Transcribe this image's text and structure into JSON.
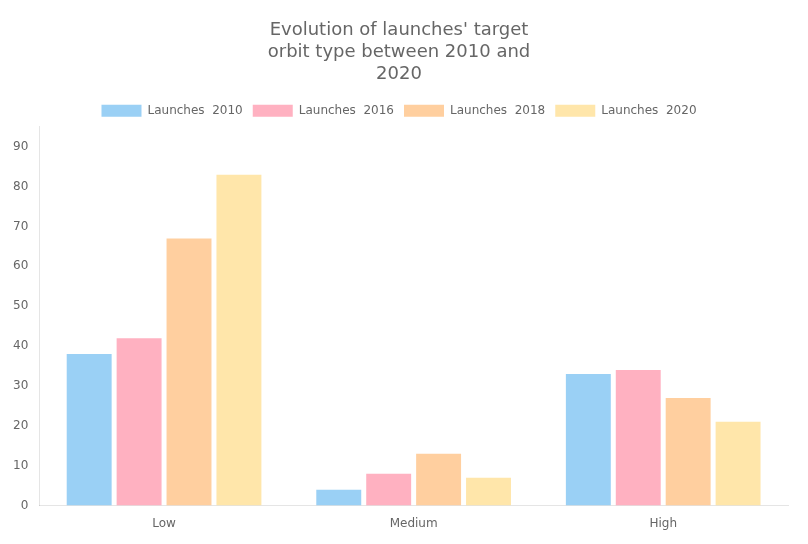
{
  "chart_data": {
    "type": "bar",
    "title": "Evolution of launches' target\norbit type between 2010 and\n2020",
    "categories": [
      "Low",
      "Medium",
      "High"
    ],
    "series": [
      {
        "name": "Launches  2010",
        "values": [
          38,
          4,
          33
        ]
      },
      {
        "name": "Launches  2016",
        "values": [
          42,
          8,
          34
        ]
      },
      {
        "name": "Launches  2018",
        "values": [
          67,
          13,
          27
        ]
      },
      {
        "name": "Launches  2020",
        "values": [
          83,
          7,
          21
        ]
      }
    ],
    "ylim": [
      0,
      95
    ],
    "yticks": [
      0,
      10,
      20,
      30,
      40,
      50,
      60,
      70,
      80,
      90
    ],
    "grid": false,
    "legend": "top"
  }
}
